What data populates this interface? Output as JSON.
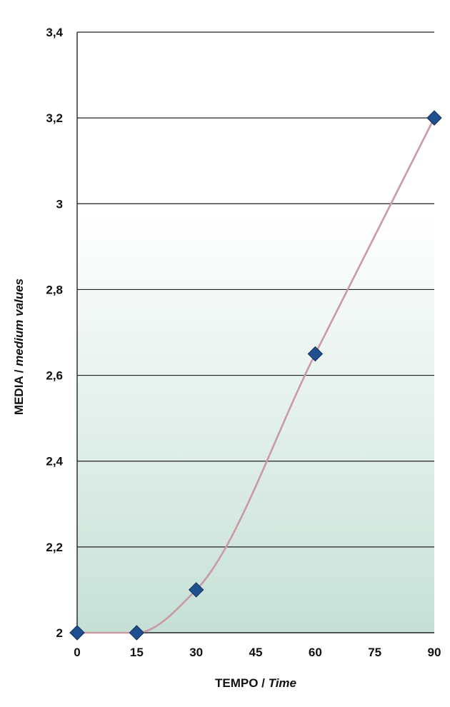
{
  "chart_data": {
    "type": "line",
    "title": "",
    "xlabel_parts": [
      "TEMPO / ",
      "Time"
    ],
    "ylabel_parts": [
      "MEDIA / ",
      "medium values"
    ],
    "x_ticks": [
      "0",
      "15",
      "30",
      "45",
      "60",
      "75",
      "90"
    ],
    "y_ticks": [
      "2",
      "2,2",
      "2,4",
      "2,6",
      "2,8",
      "3",
      "3,2",
      "3,4"
    ],
    "xlim": [
      0,
      90
    ],
    "ylim": [
      2,
      3.4
    ],
    "grid": "horizontal",
    "smooth": true,
    "series": [
      {
        "x": [
          0,
          15,
          30,
          60,
          90
        ],
        "y": [
          2.0,
          2.0,
          2.1,
          2.65,
          3.2
        ]
      }
    ],
    "colors": {
      "line": "#c99aa6",
      "marker": "#1f4f8f",
      "marker_edge": "#0e2f5e",
      "grid": "#222222",
      "bg_top": "#ffffff",
      "bg_bottom": "#c6e0d6"
    },
    "marker": "diamond-icon"
  }
}
